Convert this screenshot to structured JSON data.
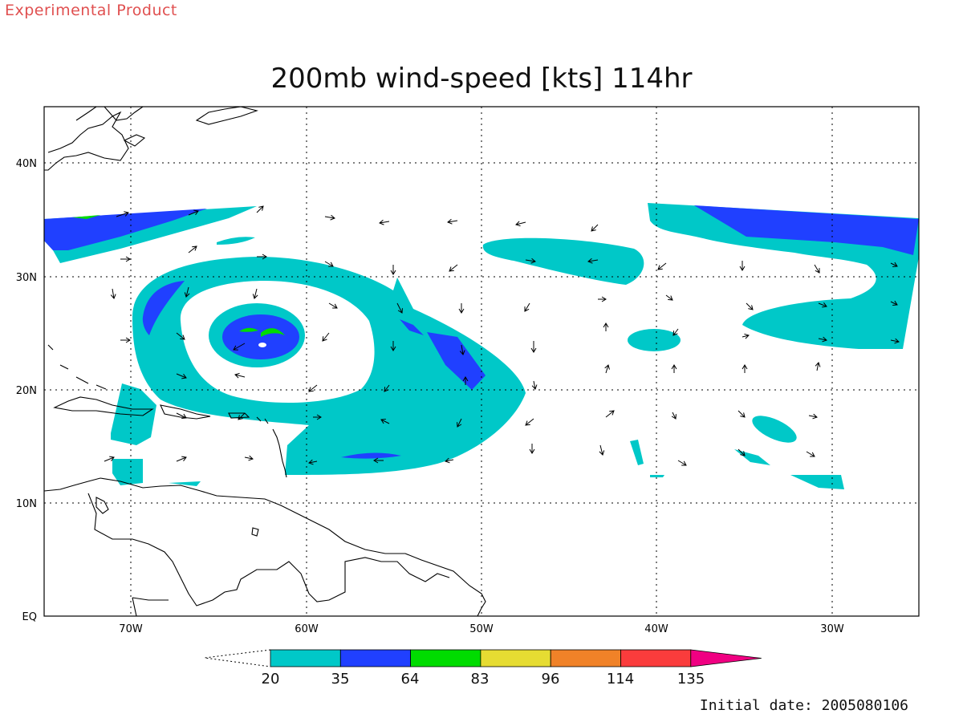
{
  "header": {
    "product_label": "Experimental Product",
    "title": "200mb wind-speed [kts] 114hr"
  },
  "footer": {
    "initial_date": "Initial date: 2005080106"
  },
  "map": {
    "lat_labels": [
      "40N",
      "30N",
      "20N",
      "10N",
      "EQ"
    ],
    "lon_labels": [
      "70W",
      "60W",
      "50W",
      "40W",
      "30W"
    ],
    "grid": true,
    "coastline_color": "#000000"
  },
  "legend": {
    "unit": "kts",
    "bins": [
      {
        "from": 20,
        "to": 35,
        "color": "#00c8c8"
      },
      {
        "from": 35,
        "to": 64,
        "color": "#2040ff"
      },
      {
        "from": 64,
        "to": 83,
        "color": "#00dc00"
      },
      {
        "from": 83,
        "to": 96,
        "color": "#e6dc32"
      },
      {
        "from": 96,
        "to": 114,
        "color": "#f08228"
      },
      {
        "from": 114,
        "to": 135,
        "color": "#fa3c3c"
      },
      {
        "from": 135,
        "to": null,
        "color": "#f00082"
      }
    ],
    "tick_labels": [
      "20",
      "35",
      "64",
      "83",
      "96",
      "114",
      "135"
    ]
  },
  "colors": {
    "cyan": "#00c8c8",
    "blue": "#2040ff",
    "green": "#00dc00",
    "banner": "#e05050"
  }
}
